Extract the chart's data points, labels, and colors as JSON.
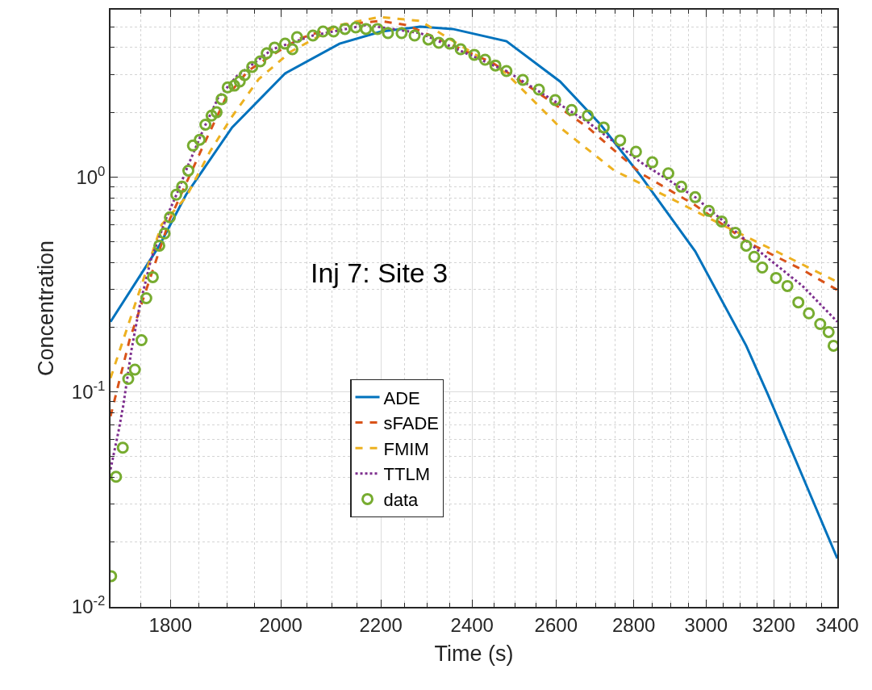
{
  "chart_data": {
    "type": "line",
    "xlabel": "Time (s)",
    "ylabel": "Concentration",
    "annotations": [
      "Inj 7: Site 3"
    ],
    "log": "xy",
    "grid": true,
    "legend": "bottom",
    "xlim": [
      1700,
      3400
    ],
    "ylim": [
      0.01,
      6
    ],
    "xticks": [
      1800,
      2000,
      2200,
      2400,
      2600,
      2800,
      3000,
      3200,
      3400
    ],
    "yticks": [
      {
        "value": 0.01,
        "label": "10$^{-2}$"
      },
      {
        "value": 0.1,
        "label": "10$^{-1}$"
      },
      {
        "value": 1,
        "label": "10$^{0}$"
      }
    ],
    "series": [
      {
        "name": "ADE",
        "color": "#0072bd",
        "line_style": "solid",
        "marker": "none",
        "x": [
          1700,
          1781,
          1827,
          1909,
          2008,
          2115,
          2201,
          2284,
          2356,
          2480,
          2610,
          2713,
          2819,
          2969,
          3117,
          3182,
          3400
        ],
        "values": [
          0.212,
          0.479,
          0.827,
          1.7,
          3.03,
          4.17,
          4.75,
          5.0,
          4.88,
          4.28,
          2.78,
          1.75,
          1.01,
          0.451,
          0.164,
          0.0975,
          0.0168
        ]
      },
      {
        "name": "sFADE",
        "color": "#d95319",
        "line_style": "dashed",
        "marker": "none",
        "x": [
          1700,
          1731,
          1799,
          1859,
          1898,
          1938,
          1984,
          2035,
          2115,
          2198,
          2255,
          2448,
          2545,
          2680,
          2819,
          2969,
          3126,
          3289,
          3400
        ],
        "values": [
          0.077,
          0.174,
          0.637,
          1.43,
          2.34,
          3.11,
          3.7,
          4.39,
          5.09,
          5.32,
          5.09,
          3.39,
          2.55,
          1.7,
          1.04,
          0.739,
          0.492,
          0.37,
          0.298
        ]
      },
      {
        "name": "FMIM",
        "color": "#edb120",
        "line_style": "dashed",
        "marker": "none",
        "x": [
          1700,
          1785,
          1827,
          1869,
          1909,
          1958,
          2019,
          2115,
          2198,
          2284,
          2480,
          2610,
          2749,
          2894,
          3045,
          3207,
          3400
        ],
        "values": [
          0.116,
          0.6,
          0.805,
          1.31,
          1.91,
          2.85,
          3.83,
          5.09,
          5.55,
          5.32,
          3.03,
          1.7,
          1.07,
          0.805,
          0.6,
          0.451,
          0.325
        ]
      },
      {
        "name": "TTLM",
        "color": "#7e2f8e",
        "line_style": "dotted",
        "marker": "none",
        "x": [
          1700,
          1713,
          1721,
          1734,
          1748,
          1767,
          1794,
          1812,
          1831,
          1859,
          1884,
          1918,
          1984,
          2062,
          2169,
          2284,
          2480,
          2680,
          2819,
          2969,
          3126,
          3289,
          3400
        ],
        "values": [
          0.0436,
          0.0655,
          0.087,
          0.155,
          0.252,
          0.414,
          0.655,
          0.848,
          1.14,
          1.7,
          2.34,
          2.95,
          3.93,
          4.55,
          5.09,
          4.67,
          3.11,
          1.8,
          1.17,
          0.805,
          0.492,
          0.311,
          0.212
        ]
      },
      {
        "name": "data",
        "type": "scatter",
        "color": "#77ac30",
        "marker": "circle",
        "x": [
          1701,
          1709,
          1720,
          1729,
          1740,
          1751,
          1759,
          1770,
          1781,
          1790,
          1799,
          1810,
          1820,
          1831,
          1839,
          1851,
          1861,
          1872,
          1881,
          1890,
          1901,
          1913,
          1923,
          1932,
          1946,
          1961,
          1973,
          1988,
          2008,
          2022,
          2031,
          2062,
          2082,
          2103,
          2126,
          2148,
          2169,
          2193,
          2215,
          2244,
          2272,
          2302,
          2325,
          2350,
          2374,
          2405,
          2430,
          2454,
          2480,
          2519,
          2558,
          2598,
          2639,
          2680,
          2721,
          2764,
          2806,
          2850,
          2894,
          2930,
          2969,
          3008,
          3045,
          3085,
          3117,
          3141,
          3165,
          3207,
          3242,
          3276,
          3309,
          3345,
          3372,
          3388
        ],
        "values": [
          0.0139,
          0.0403,
          0.055,
          0.115,
          0.127,
          0.174,
          0.273,
          0.342,
          0.479,
          0.546,
          0.649,
          0.827,
          0.901,
          1.07,
          1.4,
          1.49,
          1.75,
          1.93,
          2.0,
          2.3,
          2.61,
          2.66,
          2.78,
          2.98,
          3.25,
          3.45,
          3.76,
          4.0,
          4.17,
          3.93,
          4.47,
          4.55,
          4.75,
          4.75,
          4.88,
          4.96,
          4.88,
          4.88,
          4.67,
          4.67,
          4.55,
          4.36,
          4.21,
          4.17,
          3.93,
          3.7,
          3.51,
          3.3,
          3.11,
          2.83,
          2.55,
          2.28,
          2.05,
          1.93,
          1.7,
          1.48,
          1.31,
          1.17,
          1.04,
          0.901,
          0.805,
          0.696,
          0.621,
          0.55,
          0.479,
          0.425,
          0.379,
          0.339,
          0.311,
          0.261,
          0.232,
          0.207,
          0.19,
          0.164
        ]
      }
    ]
  }
}
